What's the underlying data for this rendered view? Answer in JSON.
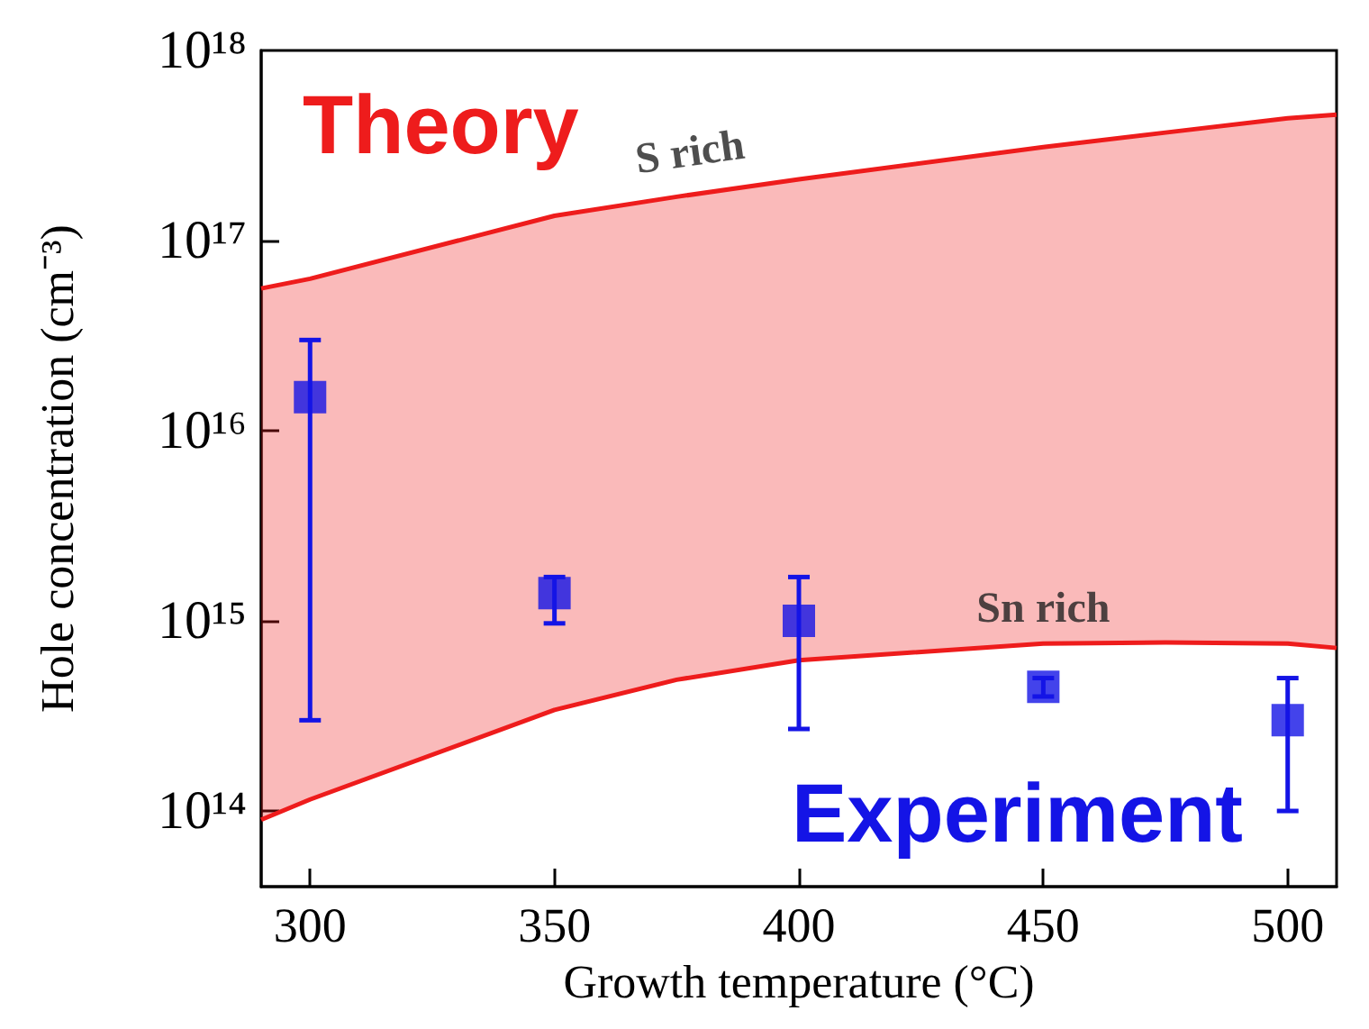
{
  "chart_data": {
    "type": "scatter",
    "xlabel": "Growth temperature (°C)",
    "ylabel": "Hole concentration (cm⁻³)",
    "xlim": [
      290,
      510
    ],
    "xticks": [
      300,
      350,
      400,
      450,
      500
    ],
    "ylim": [
      40000000000000.0,
      1e+18
    ],
    "yticks": [
      {
        "value": 100000000000000.0,
        "label": "10¹⁴"
      },
      {
        "value": 1000000000000000.0,
        "label": "10¹⁵"
      },
      {
        "value": 1e+16,
        "label": "10¹⁶"
      },
      {
        "value": 1e+17,
        "label": "10¹⁷"
      },
      {
        "value": 1e+18,
        "label": "10¹⁸"
      }
    ],
    "log": "y",
    "grid": false,
    "series": [
      {
        "name": "S rich",
        "type": "line",
        "color": "#ee1c1c",
        "x": [
          290,
          300,
          350,
          375,
          400,
          450,
          475,
          500,
          510
        ],
        "values": [
          5.6e+16,
          6.3e+16,
          1.35e+17,
          1.7e+17,
          2.1e+17,
          3.1e+17,
          3.7e+17,
          4.4e+17,
          4.6e+17
        ],
        "lower": [
          90000000000000.0,
          115000000000000.0,
          340000000000000.0,
          490000000000000.0,
          620000000000000.0,
          760000000000000.0,
          770000000000000.0,
          760000000000000.0,
          720000000000000.0
        ],
        "upper": [
          5.6e+16,
          6.3e+16,
          1.35e+17,
          1.7e+17,
          2.1e+17,
          3.1e+17,
          3.7e+17,
          4.4e+17,
          4.6e+17
        ]
      },
      {
        "name": "Sn rich",
        "type": "line",
        "color": "#ee1c1c",
        "x": [
          290,
          300,
          350,
          375,
          400,
          450,
          475,
          500,
          510
        ],
        "values": [
          90000000000000.0,
          115000000000000.0,
          340000000000000.0,
          490000000000000.0,
          620000000000000.0,
          760000000000000.0,
          770000000000000.0,
          760000000000000.0,
          720000000000000.0
        ]
      },
      {
        "color": "#1414e6",
        "marker": "square",
        "x": [
          300,
          350,
          400,
          450,
          500
        ],
        "values": [
          1.5e+16,
          1400000000000000.0,
          1000000000000000.0,
          450000000000000.0,
          300000000000000.0
        ],
        "errors": [
          [
            300000000000000.0,
            3e+16
          ],
          [
            970000000000000.0,
            1700000000000000.0
          ],
          [
            270000000000000.0,
            1700000000000000.0
          ],
          [
            400000000000000.0,
            500000000000000.0
          ],
          [
            100000000000000.0,
            500000000000000.0
          ]
        ]
      }
    ],
    "annotations": [
      "Theory",
      "Experiment"
    ]
  }
}
